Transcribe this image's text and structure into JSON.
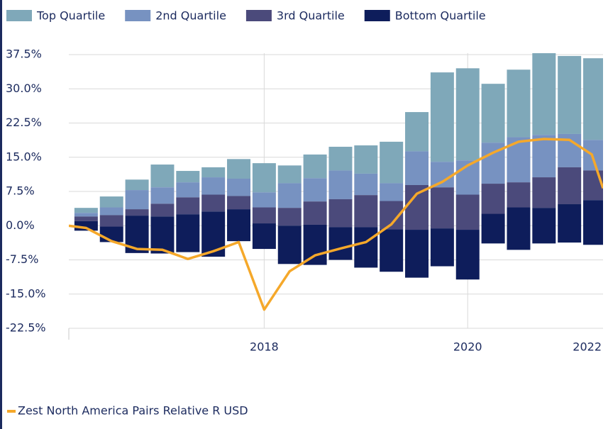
{
  "chart_data": {
    "type": "bar",
    "x": [
      2016.25,
      2016.5,
      2016.75,
      2017.0,
      2017.25,
      2017.5,
      2017.75,
      2018.0,
      2018.25,
      2018.5,
      2018.75,
      2019.0,
      2019.25,
      2019.5,
      2019.75,
      2020.0,
      2020.25,
      2020.5,
      2020.75,
      2021.0,
      2021.25,
      2021.5
    ],
    "series": [
      {
        "name": "Top Quartile",
        "type": "bar",
        "color": "#7fa8b9",
        "values": [
          [
            2.8,
            3.9
          ],
          [
            4.0,
            6.4
          ],
          [
            7.8,
            10.1
          ],
          [
            8.4,
            13.4
          ],
          [
            9.5,
            12.0
          ],
          [
            10.6,
            12.8
          ],
          [
            10.3,
            14.6
          ],
          [
            7.3,
            13.7
          ],
          [
            9.3,
            13.2
          ],
          [
            10.4,
            15.6
          ],
          [
            12.1,
            17.3
          ],
          [
            11.4,
            17.6
          ],
          [
            9.3,
            18.4
          ],
          [
            16.3,
            24.9
          ],
          [
            14.0,
            33.6
          ],
          [
            14.3,
            34.5
          ],
          [
            18.2,
            31.1
          ],
          [
            19.4,
            34.2
          ],
          [
            19.9,
            38.0
          ],
          [
            20.1,
            37.2
          ],
          [
            18.8,
            36.7
          ],
          [
            19.5,
            35.0
          ]
        ]
      },
      {
        "name": "2nd Quartile",
        "type": "bar",
        "color": "#7792c1",
        "values": [
          [
            2.0,
            2.8
          ],
          [
            2.3,
            4.0
          ],
          [
            3.6,
            7.8
          ],
          [
            4.8,
            8.4
          ],
          [
            6.2,
            9.5
          ],
          [
            6.8,
            10.6
          ],
          [
            6.5,
            10.3
          ],
          [
            4.0,
            7.3
          ],
          [
            3.9,
            9.3
          ],
          [
            5.3,
            10.4
          ],
          [
            5.8,
            12.1
          ],
          [
            6.7,
            11.4
          ],
          [
            5.4,
            9.3
          ],
          [
            8.9,
            16.3
          ],
          [
            8.4,
            14.0
          ],
          [
            6.8,
            14.3
          ],
          [
            9.2,
            18.2
          ],
          [
            9.5,
            19.4
          ],
          [
            10.6,
            19.9
          ],
          [
            12.8,
            20.1
          ],
          [
            12.1,
            18.8
          ],
          [
            8.0,
            19.5
          ]
        ]
      },
      {
        "name": "3rd Quartile",
        "type": "bar",
        "color": "#4b4a7b",
        "values": [
          [
            1.0,
            2.0
          ],
          [
            -0.2,
            2.3
          ],
          [
            2.2,
            3.6
          ],
          [
            2.0,
            4.8
          ],
          [
            2.5,
            6.2
          ],
          [
            3.1,
            6.8
          ],
          [
            3.6,
            6.5
          ],
          [
            0.5,
            4.0
          ],
          [
            0.0,
            3.9
          ],
          [
            0.2,
            5.3
          ],
          [
            -0.3,
            5.8
          ],
          [
            -0.3,
            6.7
          ],
          [
            -0.8,
            5.4
          ],
          [
            -0.9,
            8.9
          ],
          [
            -0.6,
            8.4
          ],
          [
            -0.9,
            6.8
          ],
          [
            2.6,
            9.2
          ],
          [
            4.0,
            9.5
          ],
          [
            3.9,
            10.6
          ],
          [
            4.7,
            12.8
          ],
          [
            5.6,
            12.1
          ],
          [
            6.5,
            8.0
          ]
        ]
      },
      {
        "name": "Bottom Quartile",
        "type": "bar",
        "color": "#0e1d5b",
        "values": [
          [
            -1.1,
            1.0
          ],
          [
            -3.6,
            -0.2
          ],
          [
            -6.0,
            2.2
          ],
          [
            -6.1,
            2.0
          ],
          [
            -5.8,
            2.5
          ],
          [
            -6.8,
            3.1
          ],
          [
            -3.4,
            3.6
          ],
          [
            -5.1,
            0.5
          ],
          [
            -8.4,
            0.0
          ],
          [
            -8.6,
            0.2
          ],
          [
            -7.5,
            -0.3
          ],
          [
            -9.2,
            -0.3
          ],
          [
            -10.1,
            -0.8
          ],
          [
            -11.4,
            -0.9
          ],
          [
            -8.9,
            -0.6
          ],
          [
            -11.8,
            -0.9
          ],
          [
            -3.9,
            2.6
          ],
          [
            -5.3,
            4.0
          ],
          [
            -3.9,
            3.9
          ],
          [
            -3.7,
            4.7
          ],
          [
            -4.2,
            5.6
          ],
          [
            -2.8,
            6.5
          ]
        ]
      },
      {
        "name": "Zest North America Pairs Relative R USD",
        "type": "line",
        "color": "#f5a82a",
        "x": [
          2016.08,
          2016.25,
          2016.5,
          2016.75,
          2017.0,
          2017.25,
          2017.5,
          2017.75,
          2018.0,
          2018.25,
          2018.5,
          2018.75,
          2019.0,
          2019.25,
          2019.5,
          2019.75,
          2020.0,
          2020.25,
          2020.5,
          2020.75,
          2021.0,
          2021.22,
          2021.33
        ],
        "values": [
          0.0,
          -0.5,
          -3.4,
          -5.1,
          -5.3,
          -7.3,
          -5.6,
          -3.6,
          -18.4,
          -10.0,
          -6.5,
          -5.0,
          -3.6,
          0.3,
          7.0,
          9.6,
          13.2,
          16.0,
          18.4,
          19.0,
          18.8,
          15.6,
          8.2
        ]
      }
    ],
    "xlim": [
      2016.08,
      2021.33
    ],
    "xticks": [
      2018,
      2020,
      2022
    ],
    "ylim": [
      -22.5,
      37.5
    ],
    "yticks": [
      {
        "value": 37.5,
        "label": "37.5%"
      },
      {
        "value": 30,
        "label": "30.0%"
      },
      {
        "value": 22.5,
        "label": "22.5%"
      },
      {
        "value": 15,
        "label": "15.0%"
      },
      {
        "value": 7.5,
        "label": "7.5%"
      },
      {
        "value": 0,
        "label": "0.0%"
      },
      {
        "value": -7.5,
        "label": "-7.5%"
      },
      {
        "value": -15,
        "label": "-15.0%"
      },
      {
        "value": -22.5,
        "label": "-22.5%"
      }
    ],
    "grid": true
  }
}
